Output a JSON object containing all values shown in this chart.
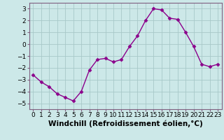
{
  "x": [
    0,
    1,
    2,
    3,
    4,
    5,
    6,
    7,
    8,
    9,
    10,
    11,
    12,
    13,
    14,
    15,
    16,
    17,
    18,
    19,
    20,
    21,
    22,
    23
  ],
  "y": [
    -2.6,
    -3.2,
    -3.6,
    -4.2,
    -4.5,
    -4.8,
    -4.0,
    -2.2,
    -1.3,
    -1.2,
    -1.5,
    -1.3,
    -0.2,
    0.7,
    2.0,
    3.0,
    2.9,
    2.2,
    2.1,
    1.0,
    -0.2,
    -1.7,
    -1.9,
    -1.7
  ],
  "line_color": "#8B008B",
  "marker": "D",
  "marker_size": 2.5,
  "bg_color": "#cce8e8",
  "grid_color": "#a8c8c8",
  "xlabel": "Windchill (Refroidissement éolien,°C)",
  "xlim": [
    -0.5,
    23.5
  ],
  "ylim": [
    -5.5,
    3.5
  ],
  "yticks": [
    -5,
    -4,
    -3,
    -2,
    -1,
    0,
    1,
    2,
    3
  ],
  "xticks": [
    0,
    1,
    2,
    3,
    4,
    5,
    6,
    7,
    8,
    9,
    10,
    11,
    12,
    13,
    14,
    15,
    16,
    17,
    18,
    19,
    20,
    21,
    22,
    23
  ],
  "xtick_labels": [
    "0",
    "1",
    "2",
    "3",
    "4",
    "5",
    "6",
    "7",
    "8",
    "9",
    "10",
    "11",
    "12",
    "13",
    "14",
    "15",
    "16",
    "17",
    "18",
    "19",
    "20",
    "21",
    "22",
    "23"
  ],
  "xlabel_fontsize": 7.5,
  "tick_fontsize": 6.5,
  "spine_color": "#806080",
  "linewidth": 1.0
}
